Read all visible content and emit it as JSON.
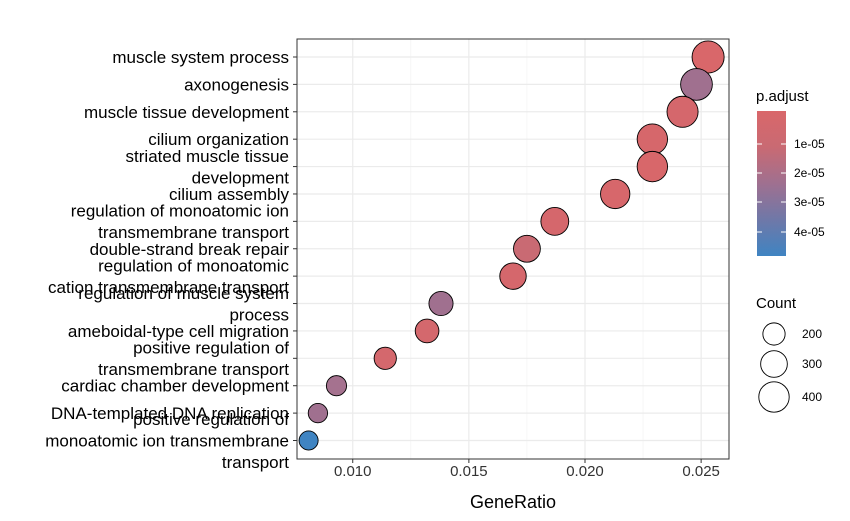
{
  "chart_data": {
    "type": "scatter",
    "xlabel": "GeneRatio",
    "x_ticks": [
      "0.010",
      "0.015",
      "0.020",
      "0.025"
    ],
    "xlim": [
      0.0076,
      0.0262
    ],
    "grid": true,
    "terms": [
      {
        "label": [
          "muscle system process"
        ],
        "gene_ratio": 0.0253,
        "count": 450,
        "color": "#D9676A"
      },
      {
        "label": [
          "axonogenesis"
        ],
        "gene_ratio": 0.0248,
        "count": 440,
        "color": "#A0708F"
      },
      {
        "label": [
          "muscle tissue development"
        ],
        "gene_ratio": 0.0242,
        "count": 420,
        "color": "#D5676C"
      },
      {
        "label": [
          "cilium organization"
        ],
        "gene_ratio": 0.0229,
        "count": 400,
        "color": "#D6676B"
      },
      {
        "label": [
          "striated muscle tissue",
          "development"
        ],
        "gene_ratio": 0.0229,
        "count": 400,
        "color": "#D8676A"
      },
      {
        "label": [
          "cilium assembly"
        ],
        "gene_ratio": 0.0213,
        "count": 370,
        "color": "#D7676B"
      },
      {
        "label": [
          "regulation of monoatomic ion",
          "transmembrane transport"
        ],
        "gene_ratio": 0.0187,
        "count": 330,
        "color": "#D5676C"
      },
      {
        "label": [
          "double-strand break repair"
        ],
        "gene_ratio": 0.0175,
        "count": 305,
        "color": "#C96A73"
      },
      {
        "label": [
          "regulation of monoatomic",
          "cation transmembrane transport"
        ],
        "gene_ratio": 0.0169,
        "count": 295,
        "color": "#D5676C"
      },
      {
        "label": [
          "regulation of muscle system",
          "process"
        ],
        "gene_ratio": 0.0138,
        "count": 240,
        "color": "#A0708F"
      },
      {
        "label": [
          "ameboidal-type cell migration"
        ],
        "gene_ratio": 0.0132,
        "count": 230,
        "color": "#D4686D"
      },
      {
        "label": [
          "positive regulation of",
          "transmembrane transport"
        ],
        "gene_ratio": 0.0114,
        "count": 200,
        "color": "#D4686D"
      },
      {
        "label": [
          "cardiac chamber development"
        ],
        "gene_ratio": 0.0093,
        "count": 160,
        "color": "#A5728F"
      },
      {
        "label": [
          "DNA-templated DNA replication"
        ],
        "gene_ratio": 0.0085,
        "count": 145,
        "color": "#A0708F"
      },
      {
        "label": [
          "positive regulation of",
          "monoatomic ion transmembrane",
          "transport"
        ],
        "gene_ratio": 0.0081,
        "count": 140,
        "color": "#3F84C2"
      }
    ],
    "legend_color": {
      "title": "p.adjust",
      "labels": [
        "1e-05",
        "2e-05",
        "3e-05",
        "4e-05"
      ],
      "colors": [
        "#D9676A",
        "#B86C7F",
        "#8D7198",
        "#627BAE",
        "#3F84C2"
      ]
    },
    "legend_size": {
      "title": "Count",
      "labels": [
        "200",
        "300",
        "400"
      ]
    }
  }
}
